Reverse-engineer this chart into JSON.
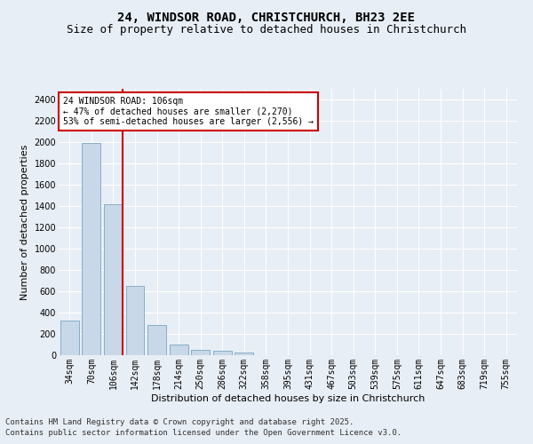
{
  "title_line1": "24, WINDSOR ROAD, CHRISTCHURCH, BH23 2EE",
  "title_line2": "Size of property relative to detached houses in Christchurch",
  "xlabel": "Distribution of detached houses by size in Christchurch",
  "ylabel": "Number of detached properties",
  "categories": [
    "34sqm",
    "70sqm",
    "106sqm",
    "142sqm",
    "178sqm",
    "214sqm",
    "250sqm",
    "286sqm",
    "322sqm",
    "358sqm",
    "395sqm",
    "431sqm",
    "467sqm",
    "503sqm",
    "539sqm",
    "575sqm",
    "611sqm",
    "647sqm",
    "683sqm",
    "719sqm",
    "755sqm"
  ],
  "values": [
    325,
    1990,
    1415,
    650,
    280,
    100,
    48,
    40,
    25,
    0,
    0,
    0,
    0,
    0,
    0,
    0,
    0,
    0,
    0,
    0,
    0
  ],
  "bar_color": "#c8d8e8",
  "bar_edge_color": "#6699bb",
  "red_line_bar_index": 2,
  "annotation_text": "24 WINDSOR ROAD: 106sqm\n← 47% of detached houses are smaller (2,270)\n53% of semi-detached houses are larger (2,556) →",
  "annotation_box_facecolor": "#ffffff",
  "annotation_box_edgecolor": "#cc0000",
  "ylim": [
    0,
    2500
  ],
  "yticks": [
    0,
    200,
    400,
    600,
    800,
    1000,
    1200,
    1400,
    1600,
    1800,
    2000,
    2200,
    2400
  ],
  "background_color": "#e8eef5",
  "grid_color": "#ffffff",
  "footer_line1": "Contains HM Land Registry data © Crown copyright and database right 2025.",
  "footer_line2": "Contains public sector information licensed under the Open Government Licence v3.0.",
  "title_fontsize": 10,
  "subtitle_fontsize": 9,
  "tick_fontsize": 7,
  "ylabel_fontsize": 8,
  "xlabel_fontsize": 8,
  "footer_fontsize": 6.5,
  "annotation_fontsize": 7
}
